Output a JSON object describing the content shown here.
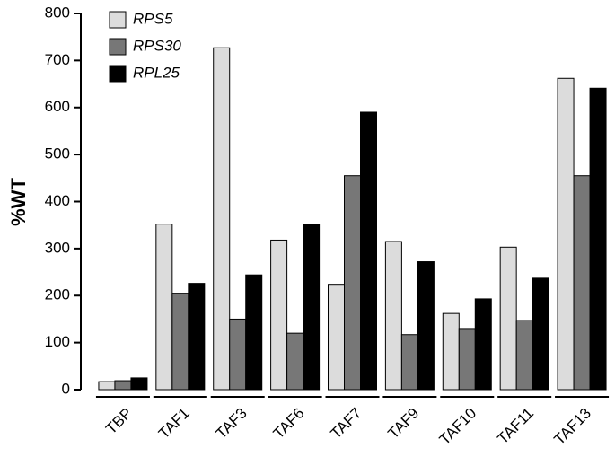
{
  "chart_data": {
    "type": "bar",
    "ylabel": "%WT",
    "categories": [
      "TBP",
      "TAF1",
      "TAF3",
      "TAF6",
      "TAF7",
      "TAF9",
      "TAF10",
      "TAF11",
      "TAF13"
    ],
    "series": [
      {
        "name": "RPS5",
        "color": "#dcdcdc",
        "values": [
          17,
          352,
          727,
          318,
          224,
          315,
          162,
          303,
          662
        ]
      },
      {
        "name": "RPS30",
        "color": "#777777",
        "values": [
          19,
          205,
          150,
          120,
          455,
          117,
          130,
          147,
          455
        ]
      },
      {
        "name": "RPL25",
        "color": "#000000",
        "values": [
          25,
          226,
          244,
          351,
          590,
          272,
          193,
          237,
          641
        ]
      }
    ],
    "ylim": [
      0,
      800
    ],
    "yticks": [
      0,
      100,
      200,
      300,
      400,
      500,
      600,
      700,
      800
    ]
  }
}
